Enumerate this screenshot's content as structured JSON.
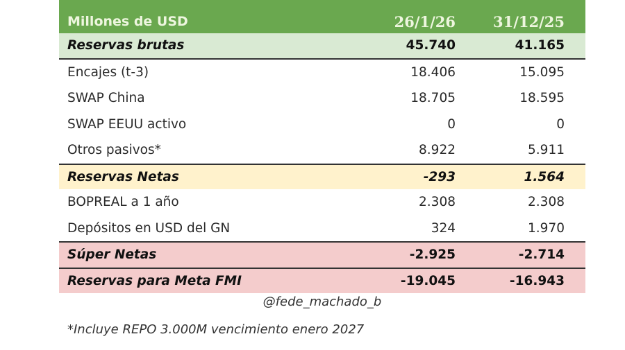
{
  "table": {
    "header": {
      "label": "Millones de USD",
      "col1": "26/1/26",
      "col2": "31/12/25"
    },
    "rows": [
      {
        "label": "Reservas brutas",
        "col1": "45.740",
        "col2": "41.165",
        "style": "highlight-green"
      },
      {
        "label": "Encajes (t-3)",
        "col1": "18.406",
        "col2": "15.095",
        "style": "plain"
      },
      {
        "label": "SWAP China",
        "col1": "18.705",
        "col2": "18.595",
        "style": "plain"
      },
      {
        "label": "SWAP EEUU activo",
        "col1": "0",
        "col2": "0",
        "style": "plain"
      },
      {
        "label": "Otros pasivos*",
        "col1": "8.922",
        "col2": "5.911",
        "style": "plain"
      },
      {
        "label": "Reservas Netas",
        "col1": "-293",
        "col2": "1.564",
        "style": "highlight-yellow"
      },
      {
        "label": "BOPREAL a 1 año",
        "col1": "2.308",
        "col2": "2.308",
        "style": "plain"
      },
      {
        "label": "Depósitos en USD del GN",
        "col1": "324",
        "col2": "1.970",
        "style": "plain"
      },
      {
        "label": "Súper Netas",
        "col1": "-2.925",
        "col2": "-2.714",
        "style": "highlight-red"
      },
      {
        "label": "Reservas para Meta FMI",
        "col1": "-19.045",
        "col2": "-16.943",
        "style": "highlight-red"
      }
    ]
  },
  "footer": {
    "credit": "@fede_machado_b",
    "note": "*Incluye REPO 3.000M vencimiento enero 2027"
  },
  "colors": {
    "header_bg": "#6aa84f",
    "brutas_bg": "#d9ead3",
    "netas_bg": "#fff2cc",
    "super_bg": "#f4cccc"
  }
}
